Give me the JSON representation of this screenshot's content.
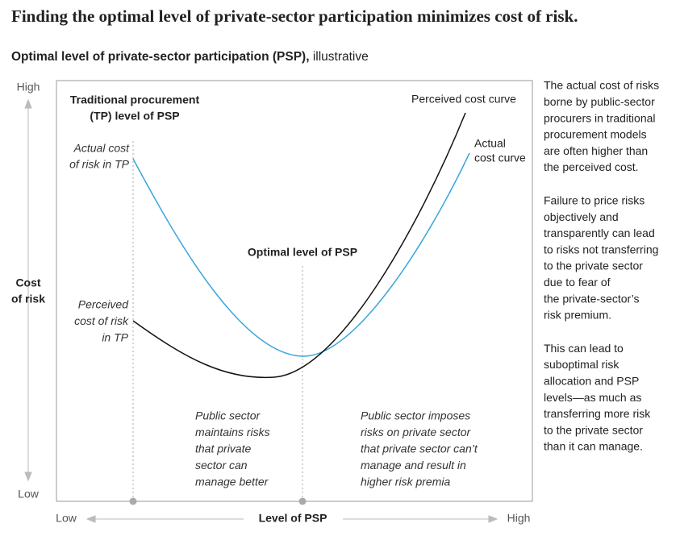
{
  "header": {
    "title": "Finding the optimal level of private-sector participation minimizes cost of risk.",
    "subtitle_bold": "Optimal level of private-sector participation (PSP),",
    "subtitle_rest": "illustrative"
  },
  "axes": {
    "y_label": [
      "Cost",
      "of risk"
    ],
    "y_high": "High",
    "y_low": "Low",
    "x_label": "Level of PSP",
    "x_low": "Low",
    "x_high": "High"
  },
  "annotations": {
    "tp_level": [
      "Traditional procurement",
      "(TP) level of PSP"
    ],
    "actual_tp": [
      "Actual cost",
      "of risk in TP"
    ],
    "perceived_tp": [
      "Perceived",
      "cost of risk",
      "in TP"
    ],
    "optimal": "Optimal level of PSP",
    "perceived_curve": "Perceived cost curve",
    "actual_curve": [
      "Actual",
      "cost curve"
    ],
    "left_zone": [
      "Public sector",
      "maintains risks",
      "that private",
      "sector can",
      "manage better"
    ],
    "right_zone": [
      "Public sector imposes",
      "risks on private sector",
      "that private sector can’t",
      "manage and result in",
      "higher risk premia"
    ]
  },
  "side_notes": [
    [
      "The actual cost of risks",
      "borne by public-sector",
      "procurers in traditional",
      "procurement models",
      "are often higher than",
      "the perceived cost."
    ],
    [
      "Failure to price risks",
      "objectively and",
      "transparently can lead",
      "to risks not transferring",
      "to the private sector",
      "due to fear of",
      "the private-sector’s",
      "risk premium."
    ],
    [
      "This can lead to",
      "suboptimal risk",
      "allocation and PSP",
      "levels—as much as",
      "transferring more risk",
      "to the private sector",
      "than it can manage."
    ]
  ]
}
